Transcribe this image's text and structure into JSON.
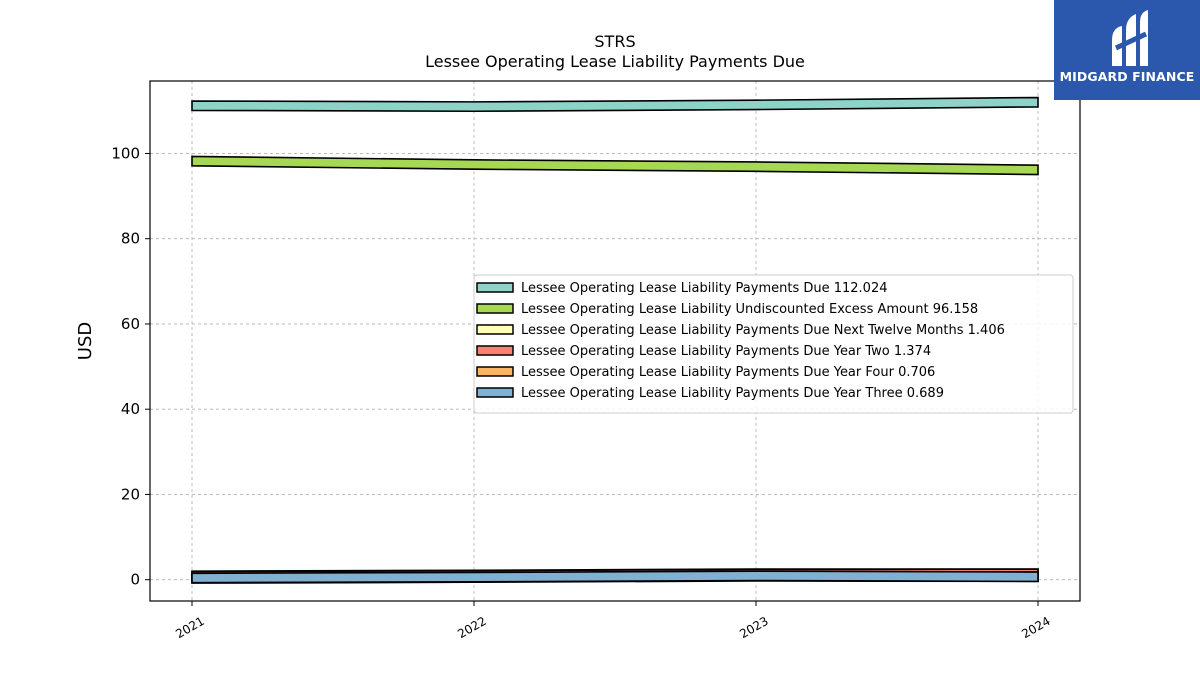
{
  "header": {
    "ticker": "STRS",
    "title": "Lessee Operating Lease Liability Payments Due"
  },
  "logo": {
    "text": "MIDGARD FINANCE",
    "background": "#2b58ad"
  },
  "chart_data": {
    "type": "area",
    "title": "STRS",
    "subtitle": "Lessee Operating Lease Liability Payments Due",
    "xlabel": "",
    "ylabel": "USD",
    "categories": [
      "2021",
      "2022",
      "2023",
      "2024"
    ],
    "ylim": [
      -5,
      117
    ],
    "yticks": [
      0,
      20,
      40,
      60,
      80,
      100
    ],
    "grid": true,
    "legend_position": "center-right",
    "series": [
      {
        "name": "Lessee Operating Lease Liability Payments Due",
        "legend_value": "112.024",
        "color": "#8dd3c7",
        "values": [
          111.2,
          111.0,
          111.4,
          112.024
        ]
      },
      {
        "name": "Lessee Operating Lease Liability Undiscounted Excess Amount",
        "legend_value": "96.158",
        "color": "#a6d854",
        "values": [
          98.2,
          97.4,
          96.9,
          96.158
        ]
      },
      {
        "name": "Lessee Operating Lease Liability Payments Due Next Twelve Months",
        "legend_value": "1.406",
        "color": "#ffffb3",
        "values": [
          0.9,
          1.1,
          1.4,
          1.406
        ]
      },
      {
        "name": "Lessee Operating Lease Liability Payments Due Year Two",
        "legend_value": "1.374",
        "color": "#fb8072",
        "values": [
          0.8,
          1.0,
          1.3,
          1.374
        ]
      },
      {
        "name": "Lessee Operating Lease Liability Payments Due Year Four",
        "legend_value": "0.706",
        "color": "#fdb462",
        "values": [
          0.3,
          0.5,
          0.8,
          0.706
        ]
      },
      {
        "name": "Lessee Operating Lease Liability Payments Due Year Three",
        "legend_value": "0.689",
        "color": "#80b1d3",
        "values": [
          0.4,
          0.6,
          0.9,
          0.689
        ]
      }
    ]
  }
}
